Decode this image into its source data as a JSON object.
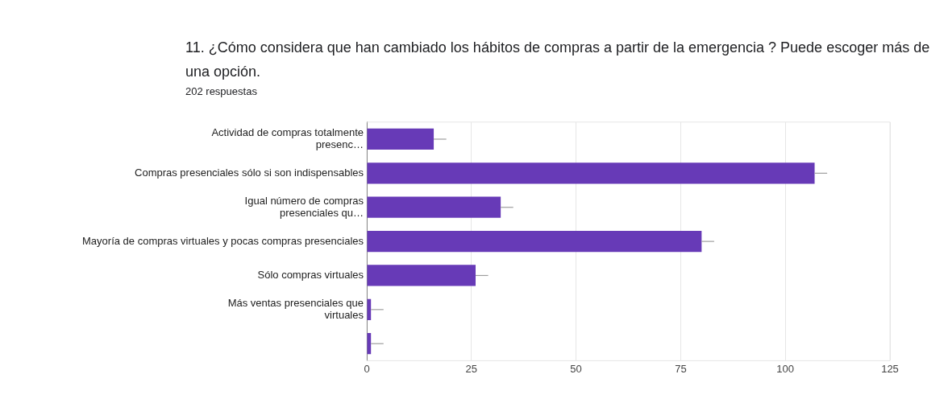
{
  "chart_data": {
    "type": "bar",
    "orientation": "horizontal",
    "title": "11. ¿Cómo considera que han cambiado los hábitos de compras a partir de la emergencia ? Puede escoger más de una opción.",
    "subtitle": "202 respuestas",
    "categories": [
      "Actividad de compras totalmente\npresenc…",
      "Compras presenciales sólo si son indispensables",
      "Igual número de compras\npresenciales qu…",
      "Mayoría de compras virtuales y pocas compras presenciales",
      "Sólo compras virtuales",
      "Más ventas presenciales que\nvirtuales",
      null
    ],
    "values": [
      16,
      107,
      32,
      80,
      26,
      1,
      1
    ],
    "errors": [
      [
        16,
        19
      ],
      [
        107,
        110
      ],
      [
        32,
        35
      ],
      [
        80,
        83
      ],
      [
        26,
        29
      ],
      [
        1,
        4
      ],
      [
        1,
        4
      ]
    ],
    "color": "#673ab7",
    "xlim": [
      0,
      125
    ],
    "xticks": [
      0,
      25,
      50,
      75,
      100,
      125
    ],
    "grid": "x",
    "legend": false
  }
}
